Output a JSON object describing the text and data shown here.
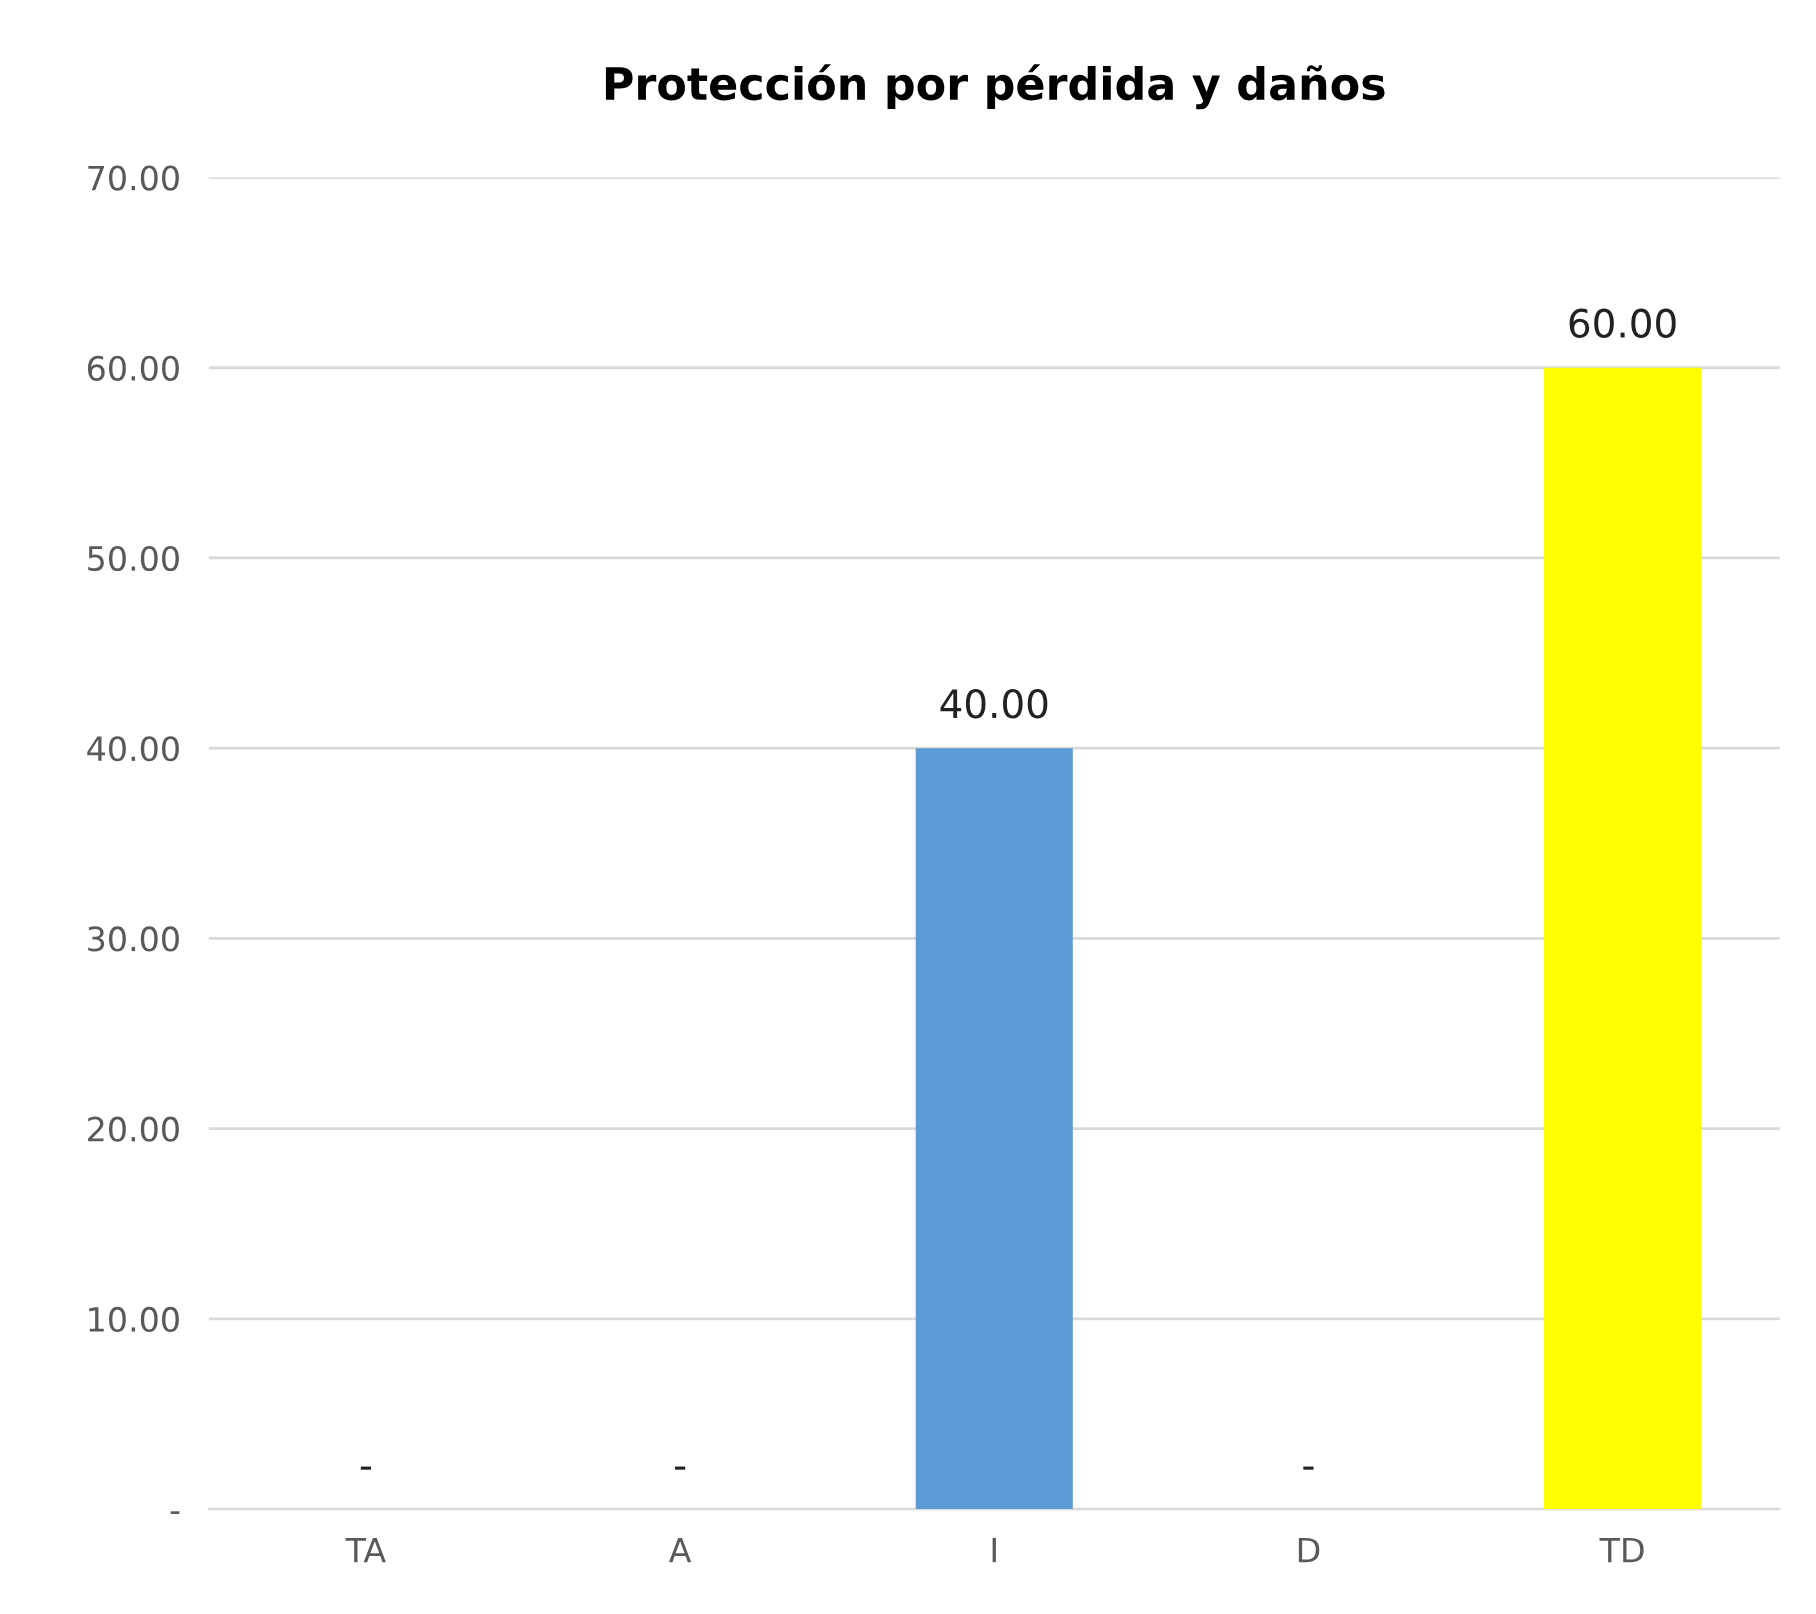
{
  "chart_data": {
    "type": "bar",
    "title": "Protección por pérdida y daños",
    "categories": [
      "TA",
      "A",
      "I",
      "D",
      "TD"
    ],
    "values": [
      0,
      0,
      40,
      0,
      60
    ],
    "colors": [
      "#5b9bd5",
      "#5b9bd5",
      "#5b9bd5",
      "#5b9bd5",
      "#ffff00"
    ],
    "value_labels": [
      "-",
      "-",
      "40.00",
      "-",
      "60.00"
    ],
    "ylim": [
      0,
      70
    ],
    "yticks": [
      {
        "value": 0,
        "label": "-"
      },
      {
        "value": 10,
        "label": "10.00"
      },
      {
        "value": 20,
        "label": "20.00"
      },
      {
        "value": 30,
        "label": "30.00"
      },
      {
        "value": 40,
        "label": "40.00"
      },
      {
        "value": 50,
        "label": "50.00"
      },
      {
        "value": 60,
        "label": "60.00"
      },
      {
        "value": 70,
        "label": "70.00"
      }
    ],
    "grid": "y",
    "legend": false
  }
}
